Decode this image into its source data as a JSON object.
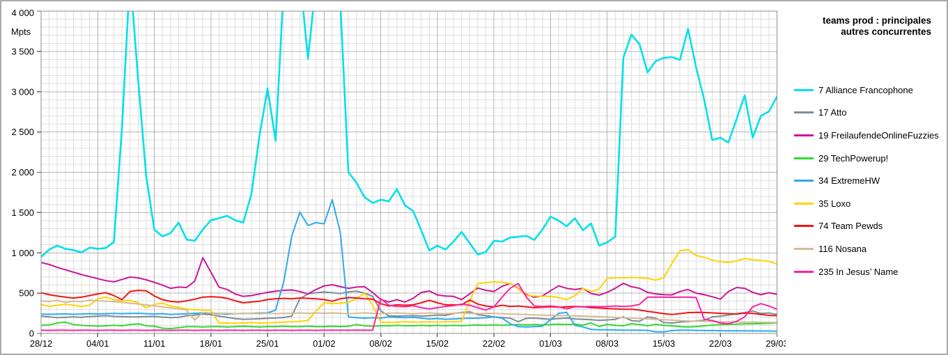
{
  "chart_data": {
    "type": "line",
    "title": "teams prod : principales autres concurrentes",
    "ylabel": "Mpts",
    "xlabel": "",
    "ylim": [
      0,
      4000
    ],
    "y_major_step": 500,
    "y_minor_step": 100,
    "x_minor_per_major": 7,
    "grid": "on",
    "legend_position": "right",
    "y_tick_labels": [
      "0",
      "500",
      "1 000",
      "1 500",
      "2 000",
      "2 500",
      "3 000",
      "3 500",
      "4 000"
    ],
    "x_tick_labels": [
      "28/12",
      "04/01",
      "11/01",
      "18/01",
      "25/01",
      "01/02",
      "08/02",
      "15/02",
      "22/02",
      "01/03",
      "08/03",
      "15/03",
      "22/03",
      "29/03"
    ],
    "series": [
      {
        "name": "7 Alliance Francophone",
        "color": "#00E1E8",
        "values": [
          950,
          1040,
          1090,
          1050,
          1035,
          1005,
          1065,
          1050,
          1060,
          1135,
          2550,
          4450,
          3150,
          1950,
          1290,
          1205,
          1245,
          1375,
          1165,
          1150,
          1290,
          1405,
          1430,
          1460,
          1405,
          1375,
          1730,
          2450,
          3040,
          2390,
          4300,
          4450,
          4450,
          3410,
          4350,
          4450,
          4450,
          4100,
          2000,
          1870,
          1690,
          1620,
          1660,
          1640,
          1790,
          1590,
          1520,
          1280,
          1030,
          1090,
          1040,
          1140,
          1260,
          1120,
          980,
          1010,
          1150,
          1140,
          1190,
          1200,
          1210,
          1160,
          1290,
          1450,
          1400,
          1330,
          1430,
          1280,
          1365,
          1090,
          1130,
          1200,
          3420,
          3710,
          3590,
          3240,
          3380,
          3420,
          3430,
          3395,
          3780,
          3300,
          2900,
          2400,
          2430,
          2370,
          2660,
          2955,
          2430,
          2700,
          2755,
          2940
        ]
      },
      {
        "name": "17 Atto",
        "color": "#7E8C99",
        "values": [
          215,
          205,
          195,
          200,
          205,
          200,
          210,
          215,
          220,
          212,
          208,
          205,
          205,
          210,
          212,
          202,
          196,
          200,
          220,
          228,
          240,
          232,
          215,
          200,
          185,
          175,
          178,
          182,
          188,
          192,
          198,
          215,
          430,
          490,
          505,
          515,
          505,
          495,
          515,
          525,
          500,
          460,
          280,
          218,
          215,
          218,
          220,
          215,
          220,
          228,
          225,
          246,
          260,
          268,
          232,
          220,
          205,
          196,
          190,
          145,
          188,
          190,
          182,
          175,
          185,
          190,
          180,
          175,
          170,
          162,
          168,
          175,
          205,
          160,
          150,
          205,
          190,
          135,
          130,
          142,
          148,
          155,
          165,
          205,
          215,
          228,
          245,
          258,
          278,
          248,
          254,
          235
        ]
      },
      {
        "name": "19 FreilaufendeOnlineFuzzies",
        "color": "#CB1698",
        "values": [
          880,
          855,
          820,
          790,
          760,
          730,
          705,
          680,
          655,
          640,
          670,
          700,
          690,
          665,
          635,
          600,
          560,
          575,
          570,
          650,
          940,
          760,
          575,
          545,
          490,
          460,
          470,
          490,
          510,
          525,
          535,
          540,
          520,
          490,
          545,
          590,
          605,
          580,
          560,
          575,
          580,
          508,
          422,
          390,
          420,
          390,
          435,
          508,
          527,
          478,
          465,
          460,
          420,
          492,
          563,
          535,
          520,
          585,
          620,
          560,
          480,
          450,
          465,
          530,
          590,
          560,
          545,
          560,
          495,
          475,
          510,
          560,
          622,
          580,
          560,
          510,
          490,
          480,
          478,
          520,
          545,
          500,
          480,
          455,
          425,
          520,
          570,
          560,
          510,
          480,
          505,
          485
        ]
      },
      {
        "name": "29 TechPowerup!",
        "color": "#30D930",
        "values": [
          100,
          105,
          130,
          140,
          110,
          100,
          95,
          90,
          95,
          100,
          95,
          110,
          120,
          95,
          90,
          65,
          60,
          70,
          85,
          85,
          80,
          85,
          85,
          80,
          85,
          90,
          85,
          80,
          85,
          85,
          90,
          85,
          85,
          90,
          85,
          85,
          90,
          85,
          90,
          110,
          95,
          90,
          95,
          95,
          100,
          95,
          95,
          100,
          95,
          100,
          95,
          100,
          95,
          100,
          105,
          100,
          105,
          100,
          105,
          110,
          105,
          110,
          105,
          110,
          115,
          110,
          115,
          104,
          130,
          86,
          112,
          100,
          95,
          120,
          110,
          95,
          112,
          100,
          95,
          85,
          80,
          85,
          95,
          104,
          110,
          112,
          115,
          118,
          120,
          122,
          125,
          130
        ]
      },
      {
        "name": "34 ExtremeHW",
        "color": "#2BAAEE",
        "values": [
          240,
          238,
          240,
          242,
          238,
          240,
          245,
          242,
          245,
          248,
          245,
          248,
          250,
          245,
          240,
          245,
          235,
          240,
          245,
          250,
          255,
          250,
          245,
          240,
          245,
          248,
          250,
          252,
          255,
          290,
          640,
          1210,
          1505,
          1340,
          1375,
          1360,
          1660,
          1250,
          205,
          195,
          190,
          195,
          190,
          205,
          200,
          195,
          200,
          190,
          180,
          185,
          175,
          180,
          185,
          190,
          190,
          195,
          205,
          190,
          120,
          85,
          80,
          85,
          90,
          170,
          250,
          260,
          100,
          80,
          50,
          45,
          45,
          42,
          40,
          40,
          40,
          38,
          20,
          20,
          35,
          40,
          40,
          38,
          36,
          35,
          34,
          33,
          32,
          32,
          31,
          30,
          30,
          28
        ]
      },
      {
        "name": "35 Loxo",
        "color": "#FFD400",
        "values": [
          360,
          335,
          350,
          363,
          350,
          335,
          350,
          430,
          450,
          420,
          405,
          410,
          380,
          320,
          360,
          375,
          340,
          325,
          300,
          295,
          290,
          285,
          130,
          130,
          125,
          130,
          135,
          130,
          130,
          135,
          140,
          145,
          150,
          160,
          280,
          380,
          370,
          375,
          385,
          430,
          500,
          350,
          140,
          135,
          140,
          145,
          140,
          140,
          145,
          140,
          145,
          145,
          150,
          400,
          620,
          630,
          640,
          635,
          620,
          555,
          470,
          465,
          460,
          460,
          445,
          420,
          470,
          560,
          520,
          550,
          685,
          690,
          690,
          695,
          690,
          685,
          660,
          690,
          870,
          1025,
          1040,
          967,
          945,
          910,
          890,
          880,
          900,
          930,
          915,
          905,
          895,
          860
        ]
      },
      {
        "name": "74 Team Pewds",
        "color": "#F31414",
        "values": [
          505,
          480,
          465,
          450,
          440,
          450,
          470,
          490,
          505,
          470,
          420,
          520,
          535,
          530,
          465,
          420,
          397,
          390,
          405,
          425,
          450,
          455,
          450,
          435,
          405,
          380,
          390,
          400,
          420,
          430,
          435,
          430,
          440,
          435,
          430,
          420,
          400,
          430,
          445,
          440,
          430,
          425,
          370,
          340,
          355,
          350,
          355,
          380,
          410,
          380,
          355,
          355,
          355,
          415,
          365,
          340,
          330,
          350,
          335,
          340,
          330,
          320,
          325,
          330,
          325,
          330,
          335,
          330,
          320,
          315,
          310,
          305,
          300,
          300,
          290,
          275,
          260,
          245,
          235,
          245,
          258,
          262,
          260,
          255,
          250,
          245,
          240,
          252,
          248,
          235,
          225,
          220
        ]
      },
      {
        "name": "116 Nosana",
        "color": "#D7BA94",
        "values": [
          405,
          395,
          410,
          385,
          400,
          395,
          415,
          405,
          400,
          395,
          385,
          375,
          365,
          355,
          340,
          330,
          318,
          305,
          290,
          165,
          260,
          255,
          250,
          250,
          245,
          250,
          250,
          245,
          250,
          245,
          250,
          250,
          255,
          250,
          255,
          250,
          255,
          250,
          245,
          250,
          255,
          250,
          245,
          250,
          255,
          250,
          245,
          250,
          255,
          250,
          245,
          250,
          255,
          250,
          245,
          250,
          248,
          245,
          240,
          238,
          235,
          230,
          228,
          225,
          222,
          220,
          218,
          215,
          212,
          208,
          205,
          200,
          195,
          190,
          185,
          180,
          175,
          170,
          165,
          160,
          155,
          152,
          150,
          148,
          145,
          143,
          142,
          140,
          140,
          138,
          136,
          135
        ]
      },
      {
        "name": "235 In Jesus’ Name",
        "color": "#FF22A3",
        "values": [
          40,
          38,
          40,
          40,
          38,
          40,
          40,
          38,
          40,
          40,
          38,
          40,
          40,
          38,
          40,
          40,
          38,
          40,
          40,
          38,
          40,
          40,
          38,
          40,
          40,
          38,
          40,
          40,
          38,
          40,
          40,
          38,
          40,
          40,
          38,
          40,
          40,
          40,
          40,
          40,
          40,
          40,
          430,
          350,
          335,
          330,
          345,
          320,
          305,
          320,
          335,
          345,
          363,
          350,
          320,
          290,
          330,
          450,
          560,
          620,
          450,
          340,
          335,
          340,
          330,
          305,
          330,
          330,
          335,
          330,
          335,
          340,
          335,
          340,
          360,
          450,
          450,
          450,
          448,
          450,
          450,
          445,
          175,
          160,
          130,
          120,
          150,
          205,
          330,
          370,
          340,
          300
        ]
      }
    ]
  },
  "style": {
    "grid_minor_color": "#DEDEDE",
    "grid_major_color": "#B4B4B4",
    "plot_border_color": "#8C8C8C",
    "axis_color": "#666666"
  }
}
